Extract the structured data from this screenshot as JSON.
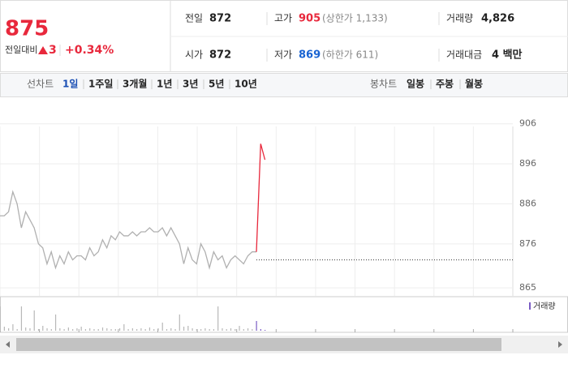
{
  "quote": {
    "price": 875,
    "change_label": "전일대비",
    "change": 3,
    "change_rate": "+0.34%"
  },
  "stats": [
    {
      "label": "전일",
      "value": 872
    },
    {
      "label": "고가",
      "value": 905,
      "sub": "(상한가 1,133)"
    },
    {
      "label": "거래량",
      "value": "4,826"
    },
    {
      "label": "시가",
      "value": 872
    },
    {
      "label": "저가",
      "value": 869,
      "sub": "(하한가 611)"
    },
    {
      "label": "거래대금",
      "value": "4 백만"
    }
  ],
  "line_tabs": {
    "title": "선차트",
    "items": [
      "1일",
      "1주일",
      "3개월",
      "1년",
      "3년",
      "5년",
      "10년"
    ],
    "selected": 0
  },
  "candle_tabs": {
    "title": "봉차트",
    "items": [
      "일봉",
      "주봉",
      "월봉"
    ]
  },
  "chart_data": {
    "type": "line",
    "ylim": [
      863,
      911
    ],
    "yticks": [
      865,
      876,
      886,
      896,
      906
    ],
    "xlim": [
      0,
      120
    ],
    "grid": true,
    "series": [
      {
        "name": "price",
        "color": "#b0b0b0",
        "values": [
          883,
          883,
          884,
          889,
          886,
          880,
          884,
          882,
          880,
          876,
          875,
          871,
          874,
          870,
          873,
          871,
          874,
          872,
          873,
          873,
          872,
          875,
          873,
          874,
          877,
          875,
          878,
          877,
          879,
          878,
          878,
          879,
          878,
          879,
          879,
          880,
          879,
          879,
          880,
          878,
          880,
          878,
          876,
          871,
          875,
          872,
          871,
          876,
          874,
          870,
          874,
          872,
          873,
          870,
          872,
          873,
          872,
          871,
          873,
          874,
          874,
          null,
          null
        ]
      },
      {
        "name": "after",
        "color": "#e8283c",
        "values": [
          null,
          null,
          null,
          null,
          null,
          null,
          null,
          null,
          null,
          null,
          null,
          null,
          null,
          null,
          null,
          null,
          null,
          null,
          null,
          null,
          null,
          null,
          null,
          null,
          null,
          null,
          null,
          null,
          null,
          null,
          null,
          null,
          null,
          null,
          null,
          null,
          null,
          null,
          null,
          null,
          null,
          null,
          null,
          null,
          null,
          null,
          null,
          null,
          null,
          null,
          null,
          null,
          null,
          null,
          null,
          null,
          null,
          null,
          null,
          null,
          874,
          901,
          897
        ]
      }
    ],
    "volume": {
      "name": "거래량",
      "color": "#b8b8b8",
      "values": [
        30,
        5,
        3,
        8,
        2,
        30,
        4,
        3,
        25,
        2,
        6,
        3,
        2,
        20,
        3,
        2,
        4,
        2,
        3,
        5,
        2,
        3,
        2,
        2,
        4,
        3,
        2,
        2,
        3,
        8,
        2,
        3,
        2,
        3,
        2,
        4,
        2,
        3,
        10,
        2,
        3,
        2,
        20,
        5,
        6,
        3,
        2,
        2,
        3,
        2,
        2,
        30,
        3,
        2,
        3,
        2,
        6,
        2,
        3,
        2,
        12,
        2,
        1
      ]
    }
  }
}
